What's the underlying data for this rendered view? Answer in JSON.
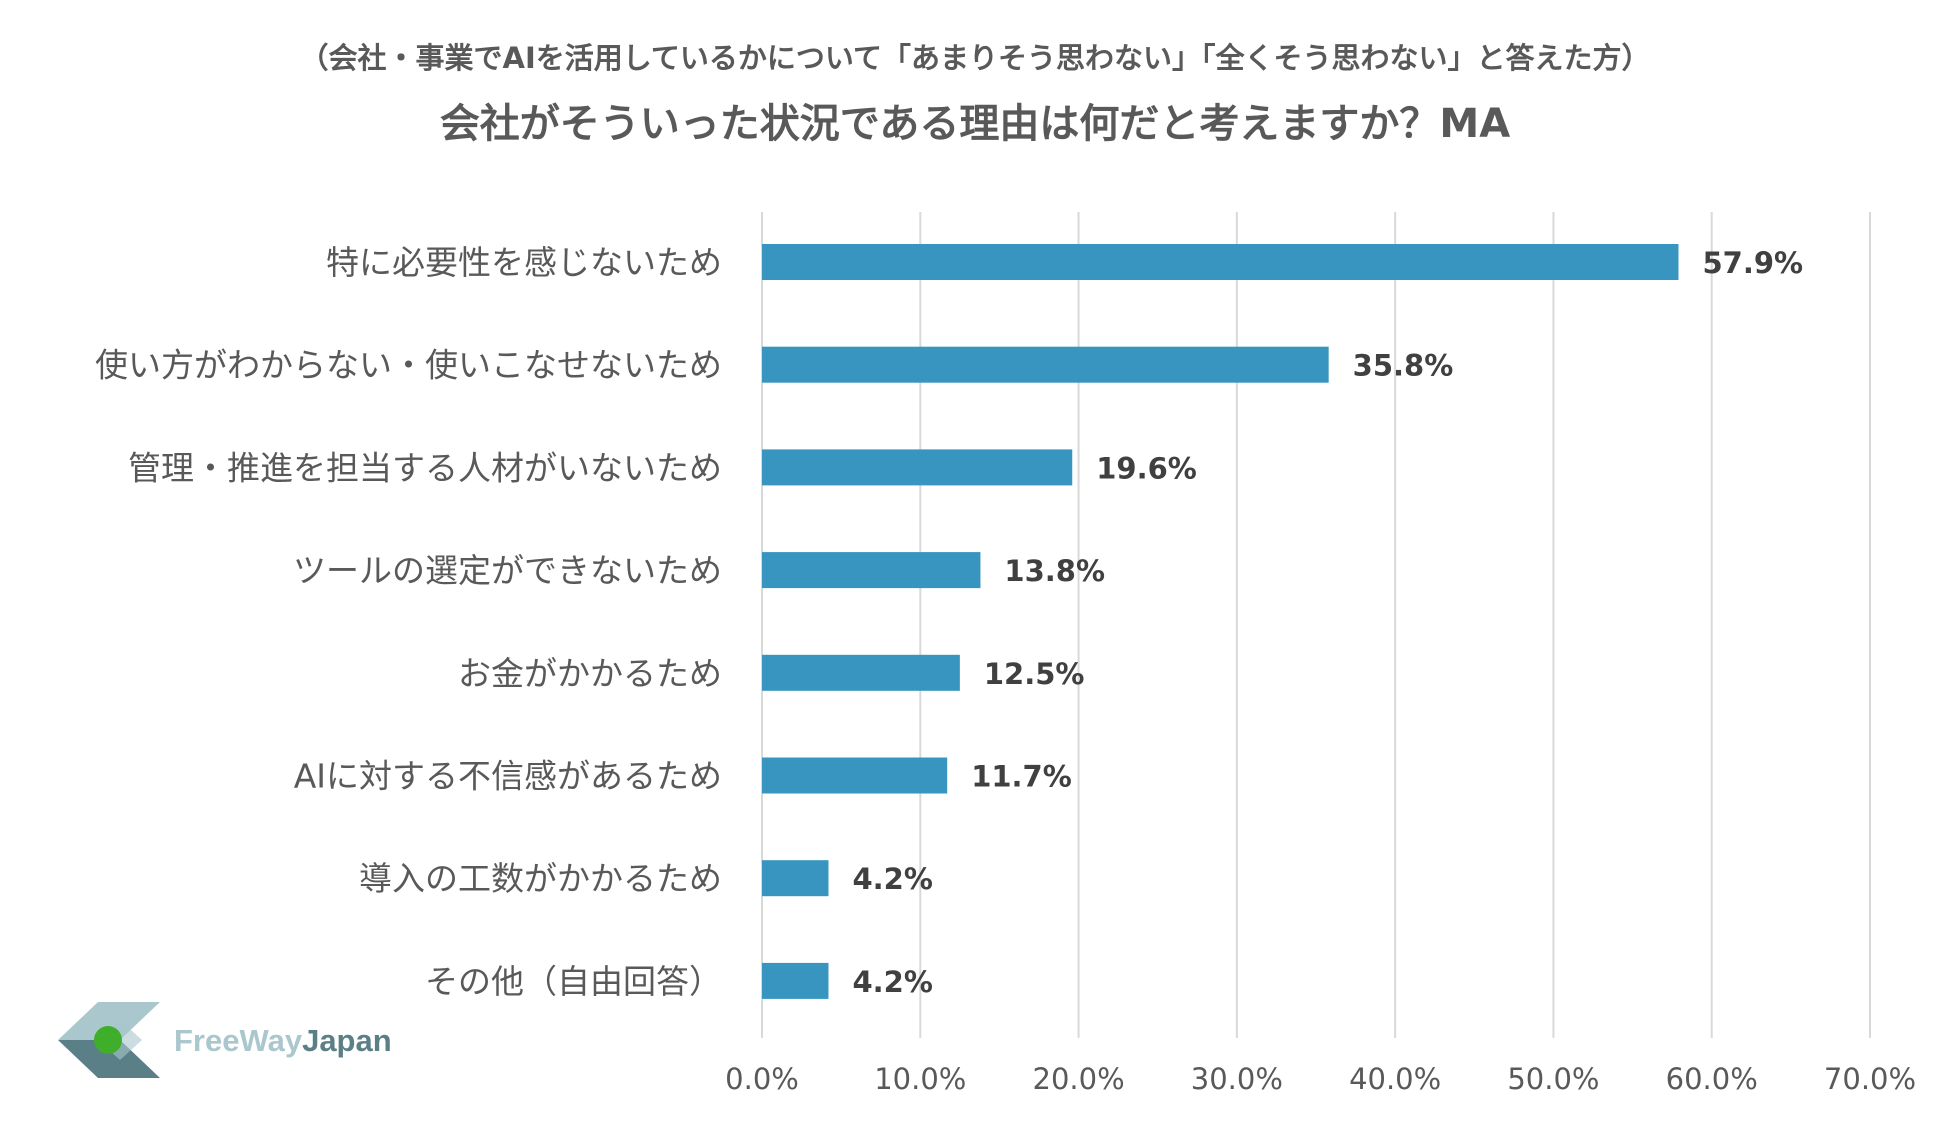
{
  "chart_data": {
    "type": "bar",
    "orientation": "horizontal",
    "subtitle": "（会社・事業でAIを活用しているかについて「あまりそう思わない」「全くそう思わない」と答えた方）",
    "title": "会社がそういった状況である理由は何だと考えますか？MA",
    "categories": [
      "特に必要性を感じないため",
      "使い方がわからない・使いこなせないため",
      "管理・推進を担当する人材がいないため",
      "ツールの選定ができないため",
      "お金がかかるため",
      "AIに対する不信感があるため",
      "導入の工数がかかるため",
      "その他（自由回答）"
    ],
    "values": [
      57.9,
      35.8,
      19.6,
      13.8,
      12.5,
      11.7,
      4.2,
      4.2
    ],
    "value_labels": [
      "57.9%",
      "35.8%",
      "19.6%",
      "13.8%",
      "12.5%",
      "11.7%",
      "4.2%",
      "4.2%"
    ],
    "xlim": [
      0,
      70
    ],
    "x_ticks": [
      0,
      10,
      20,
      30,
      40,
      50,
      60,
      70
    ],
    "x_tick_labels": [
      "0.0%",
      "10.0%",
      "20.0%",
      "30.0%",
      "40.0%",
      "50.0%",
      "60.0%",
      "70.0%"
    ],
    "xlabel": "",
    "ylabel": "",
    "grid": true,
    "legend": "none"
  },
  "logo": {
    "text_part1": "FreeWay",
    "text_part2": "Japan"
  },
  "colors": {
    "bar": "#3795bf",
    "grid": "#d9d9d9",
    "text": "#595959",
    "value_text": "#404040",
    "logo_light": "#a9c7cc",
    "logo_dark": "#5b7f86",
    "logo_green": "#3fae2a"
  }
}
